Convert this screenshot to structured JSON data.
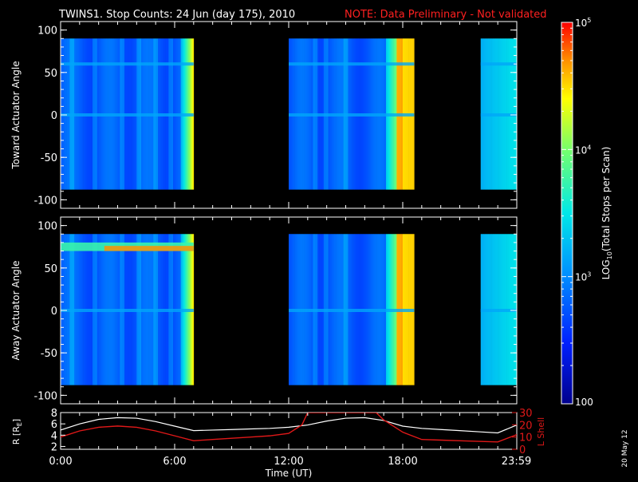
{
  "title": {
    "main": "TWINS1. Stop Counts: 24 Jun (day 175), 2010",
    "note": "NOTE: Data Preliminary - Not validated"
  },
  "colors": {
    "background": "#000000",
    "axes": "#ffffff",
    "note": "#ff2020",
    "lshell": "#e01818",
    "radius": "#ffffff"
  },
  "datestamp": "20 May 12",
  "chart_data": [
    {
      "type": "heatmap",
      "ylabel": "Toward Actuator Angle",
      "ylim": [
        -110,
        110
      ],
      "yticks": [
        -100,
        -50,
        0,
        50,
        100
      ],
      "xlim_hours": [
        0,
        24
      ],
      "angle_range": [
        -88,
        90
      ],
      "data_segments_hours": [
        [
          0,
          7.0
        ],
        [
          12.0,
          18.6
        ],
        [
          22.1,
          24
        ]
      ],
      "spin_stripe_angles": [
        60,
        0
      ],
      "stripe_hours": [
        0.6,
        1.8,
        3.2,
        4.1,
        5.0,
        5.8,
        13.4,
        13.9,
        15.0
      ],
      "high_count_hours": [
        17.6,
        18.6
      ]
    },
    {
      "type": "heatmap",
      "ylabel": "Away Actuator Angle",
      "ylim": [
        -110,
        110
      ],
      "yticks": [
        -100,
        -50,
        0,
        50,
        100
      ],
      "xlim_hours": [
        0,
        24
      ],
      "angle_range": [
        -88,
        90
      ],
      "data_segments_hours": [
        [
          0,
          7.0
        ],
        [
          12.0,
          18.6
        ],
        [
          22.1,
          24
        ]
      ],
      "spin_stripe_angles": [
        0
      ],
      "high_band_angles": [
        70,
        80
      ],
      "stripe_hours": [
        0.6,
        1.8,
        3.2,
        4.1,
        5.0,
        5.8,
        13.4,
        13.9,
        15.0
      ],
      "high_count_hours": [
        17.6,
        18.6
      ]
    },
    {
      "type": "line",
      "xlabel": "Time (UT)",
      "xticks_hours": [
        0,
        6,
        12,
        18,
        23.98
      ],
      "xtick_labels": [
        "0:00",
        "6:00",
        "12:00",
        "18:00",
        "23:59"
      ],
      "ylabel_left": "R [RE]",
      "ylim_left": [
        1.5,
        8
      ],
      "yticks_left": [
        2,
        4,
        6,
        8
      ],
      "ylabel_right": "L Shell",
      "ylim_right": [
        0,
        30
      ],
      "yticks_right": [
        0,
        10,
        20,
        30
      ],
      "series": [
        {
          "name": "R [RE]",
          "x": [
            0,
            1,
            2,
            3,
            4,
            5,
            6,
            7,
            8,
            9,
            10,
            11,
            12,
            13,
            14,
            15,
            16,
            17,
            18,
            19,
            20,
            21,
            22,
            23,
            24
          ],
          "y": [
            4.9,
            6.0,
            6.8,
            7.1,
            7.0,
            6.4,
            5.6,
            4.8,
            4.9,
            5.0,
            5.1,
            5.2,
            5.4,
            5.8,
            6.5,
            7.0,
            7.1,
            6.6,
            5.6,
            5.2,
            5.0,
            4.8,
            4.6,
            4.4,
            5.8
          ]
        },
        {
          "name": "L Shell",
          "x": [
            0,
            1,
            2,
            3,
            4,
            5,
            6,
            7,
            8,
            9,
            10,
            11,
            12,
            12.7,
            13,
            16.6,
            17,
            18,
            19,
            20,
            21,
            22,
            23,
            24
          ],
          "y": [
            10,
            15,
            18,
            19,
            18,
            15,
            11,
            7,
            8,
            9,
            10,
            11,
            13,
            20,
            30,
            30,
            24,
            14,
            8,
            7.5,
            7,
            6.5,
            6,
            12
          ]
        }
      ]
    }
  ],
  "colorbar": {
    "label": "LOG10(Total Stops per Scan)",
    "label_prefix": "LOG",
    "label_sub": "10",
    "label_suffix": "(Total Stops per Scan)",
    "scale": "log",
    "range": [
      100,
      100000
    ],
    "ticks": [
      {
        "value": 100,
        "base": "100",
        "exp": ""
      },
      {
        "value": 1000,
        "base": "10",
        "exp": "3"
      },
      {
        "value": 10000,
        "base": "10",
        "exp": "4"
      },
      {
        "value": 100000,
        "base": "10",
        "exp": "5"
      }
    ]
  },
  "radius_label": {
    "prefix": "R [R",
    "sub": "E",
    "suffix": "]"
  }
}
